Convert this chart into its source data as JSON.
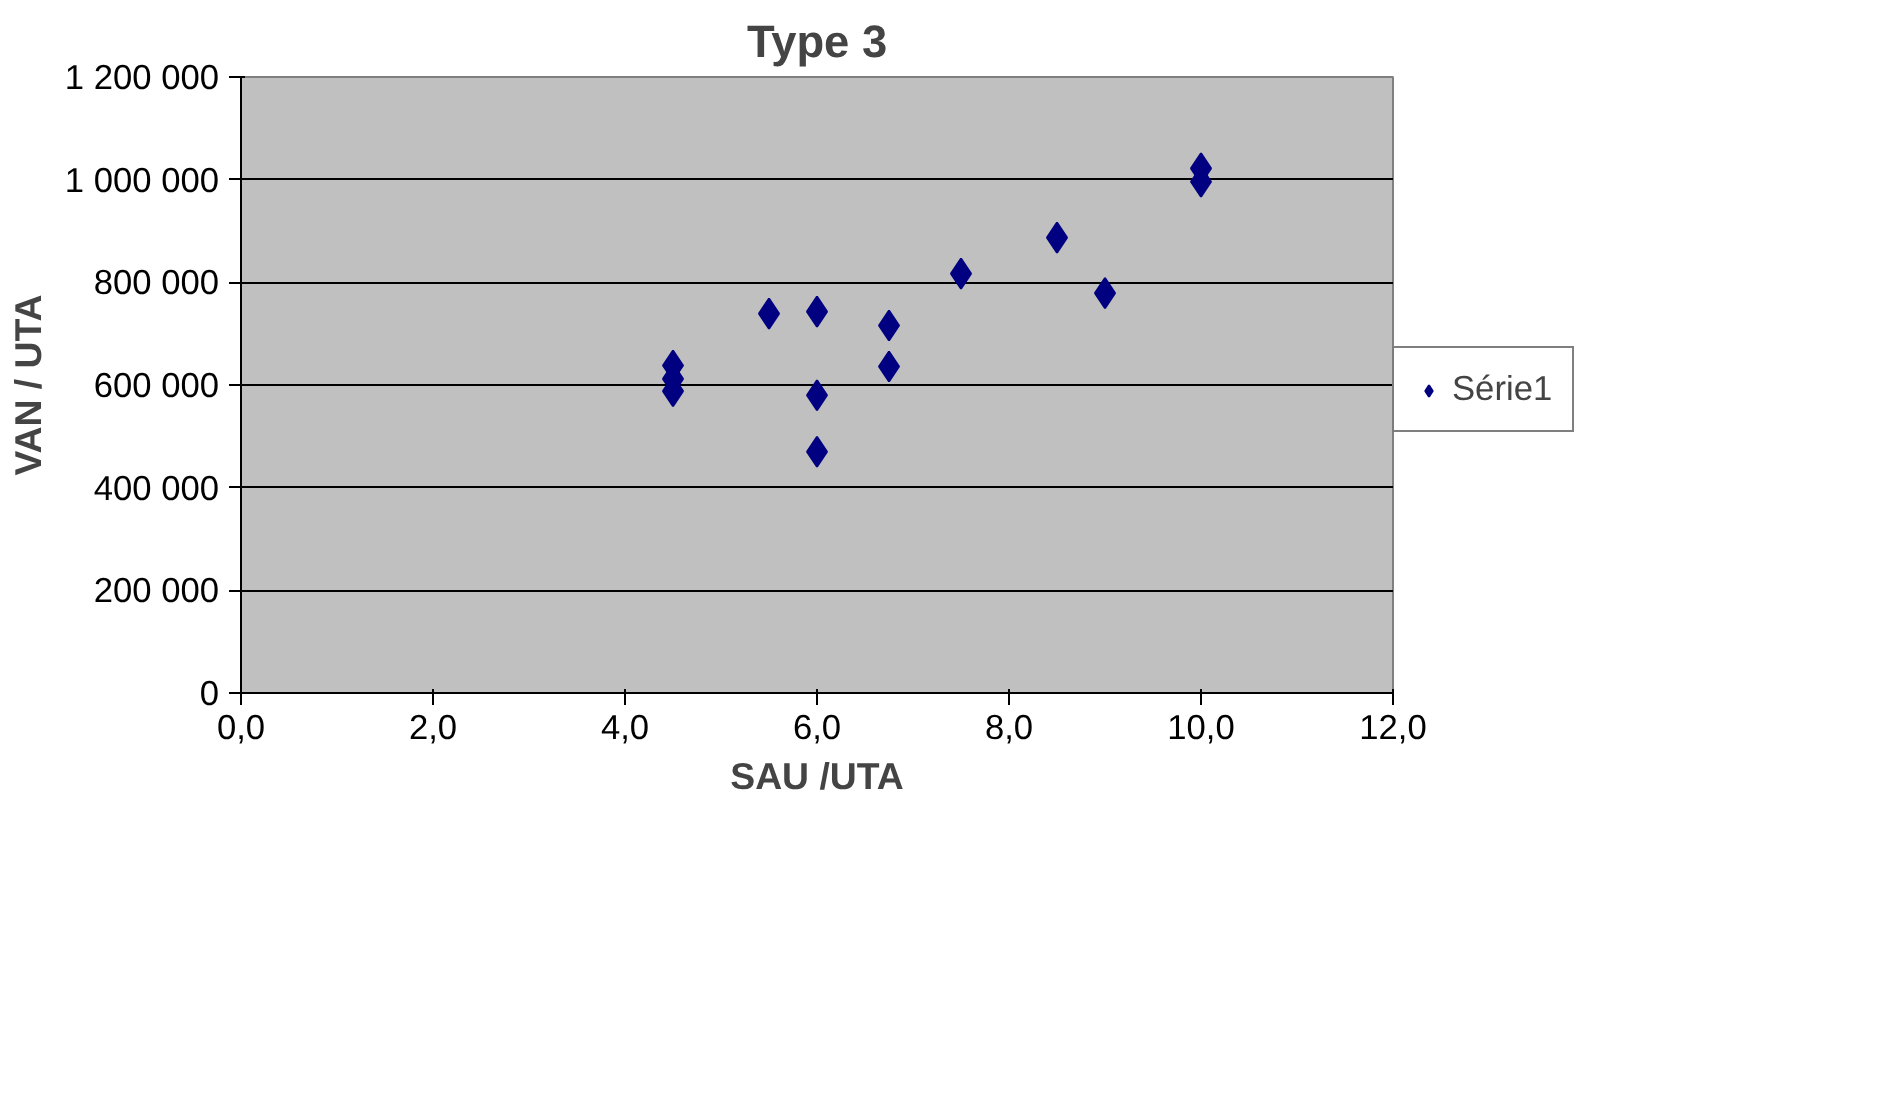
{
  "chart_data": {
    "type": "scatter",
    "title": "Type 3",
    "xlabel": "SAU /UTA",
    "ylabel": "VAN / UTA",
    "x": [
      4.5,
      4.5,
      4.5,
      5.5,
      6.0,
      6.0,
      6.0,
      6.75,
      6.75,
      7.5,
      8.5,
      9.0,
      10.0,
      10.0
    ],
    "series": [
      {
        "name": "Série1",
        "color": "#000080",
        "values": [
          638000,
          612000,
          588000,
          739000,
          743000,
          580000,
          470000,
          716000,
          636000,
          817000,
          887000,
          779000,
          1022000,
          996000
        ]
      }
    ],
    "xlim": [
      0,
      12
    ],
    "xticks": [
      {
        "value": 0,
        "label": "0,0"
      },
      {
        "value": 2,
        "label": "2,0"
      },
      {
        "value": 4,
        "label": "4,0"
      },
      {
        "value": 6,
        "label": "6,0"
      },
      {
        "value": 8,
        "label": "8,0"
      },
      {
        "value": 10,
        "label": "10,0"
      },
      {
        "value": 12,
        "label": "12,0"
      }
    ],
    "ylim": [
      0,
      1200000
    ],
    "yticks": [
      0,
      {
        "value": 200000,
        "label": "200 000"
      },
      {
        "value": 400000,
        "label": "400 000"
      },
      {
        "value": 600000,
        "label": "600 000"
      },
      {
        "value": 800000,
        "label": "800 000"
      },
      {
        "value": 1000000,
        "label": "1 000 000"
      },
      {
        "value": 1200000,
        "label": "1 200 000"
      }
    ],
    "grid": "y",
    "legend": "right",
    "marker": "diamond"
  }
}
